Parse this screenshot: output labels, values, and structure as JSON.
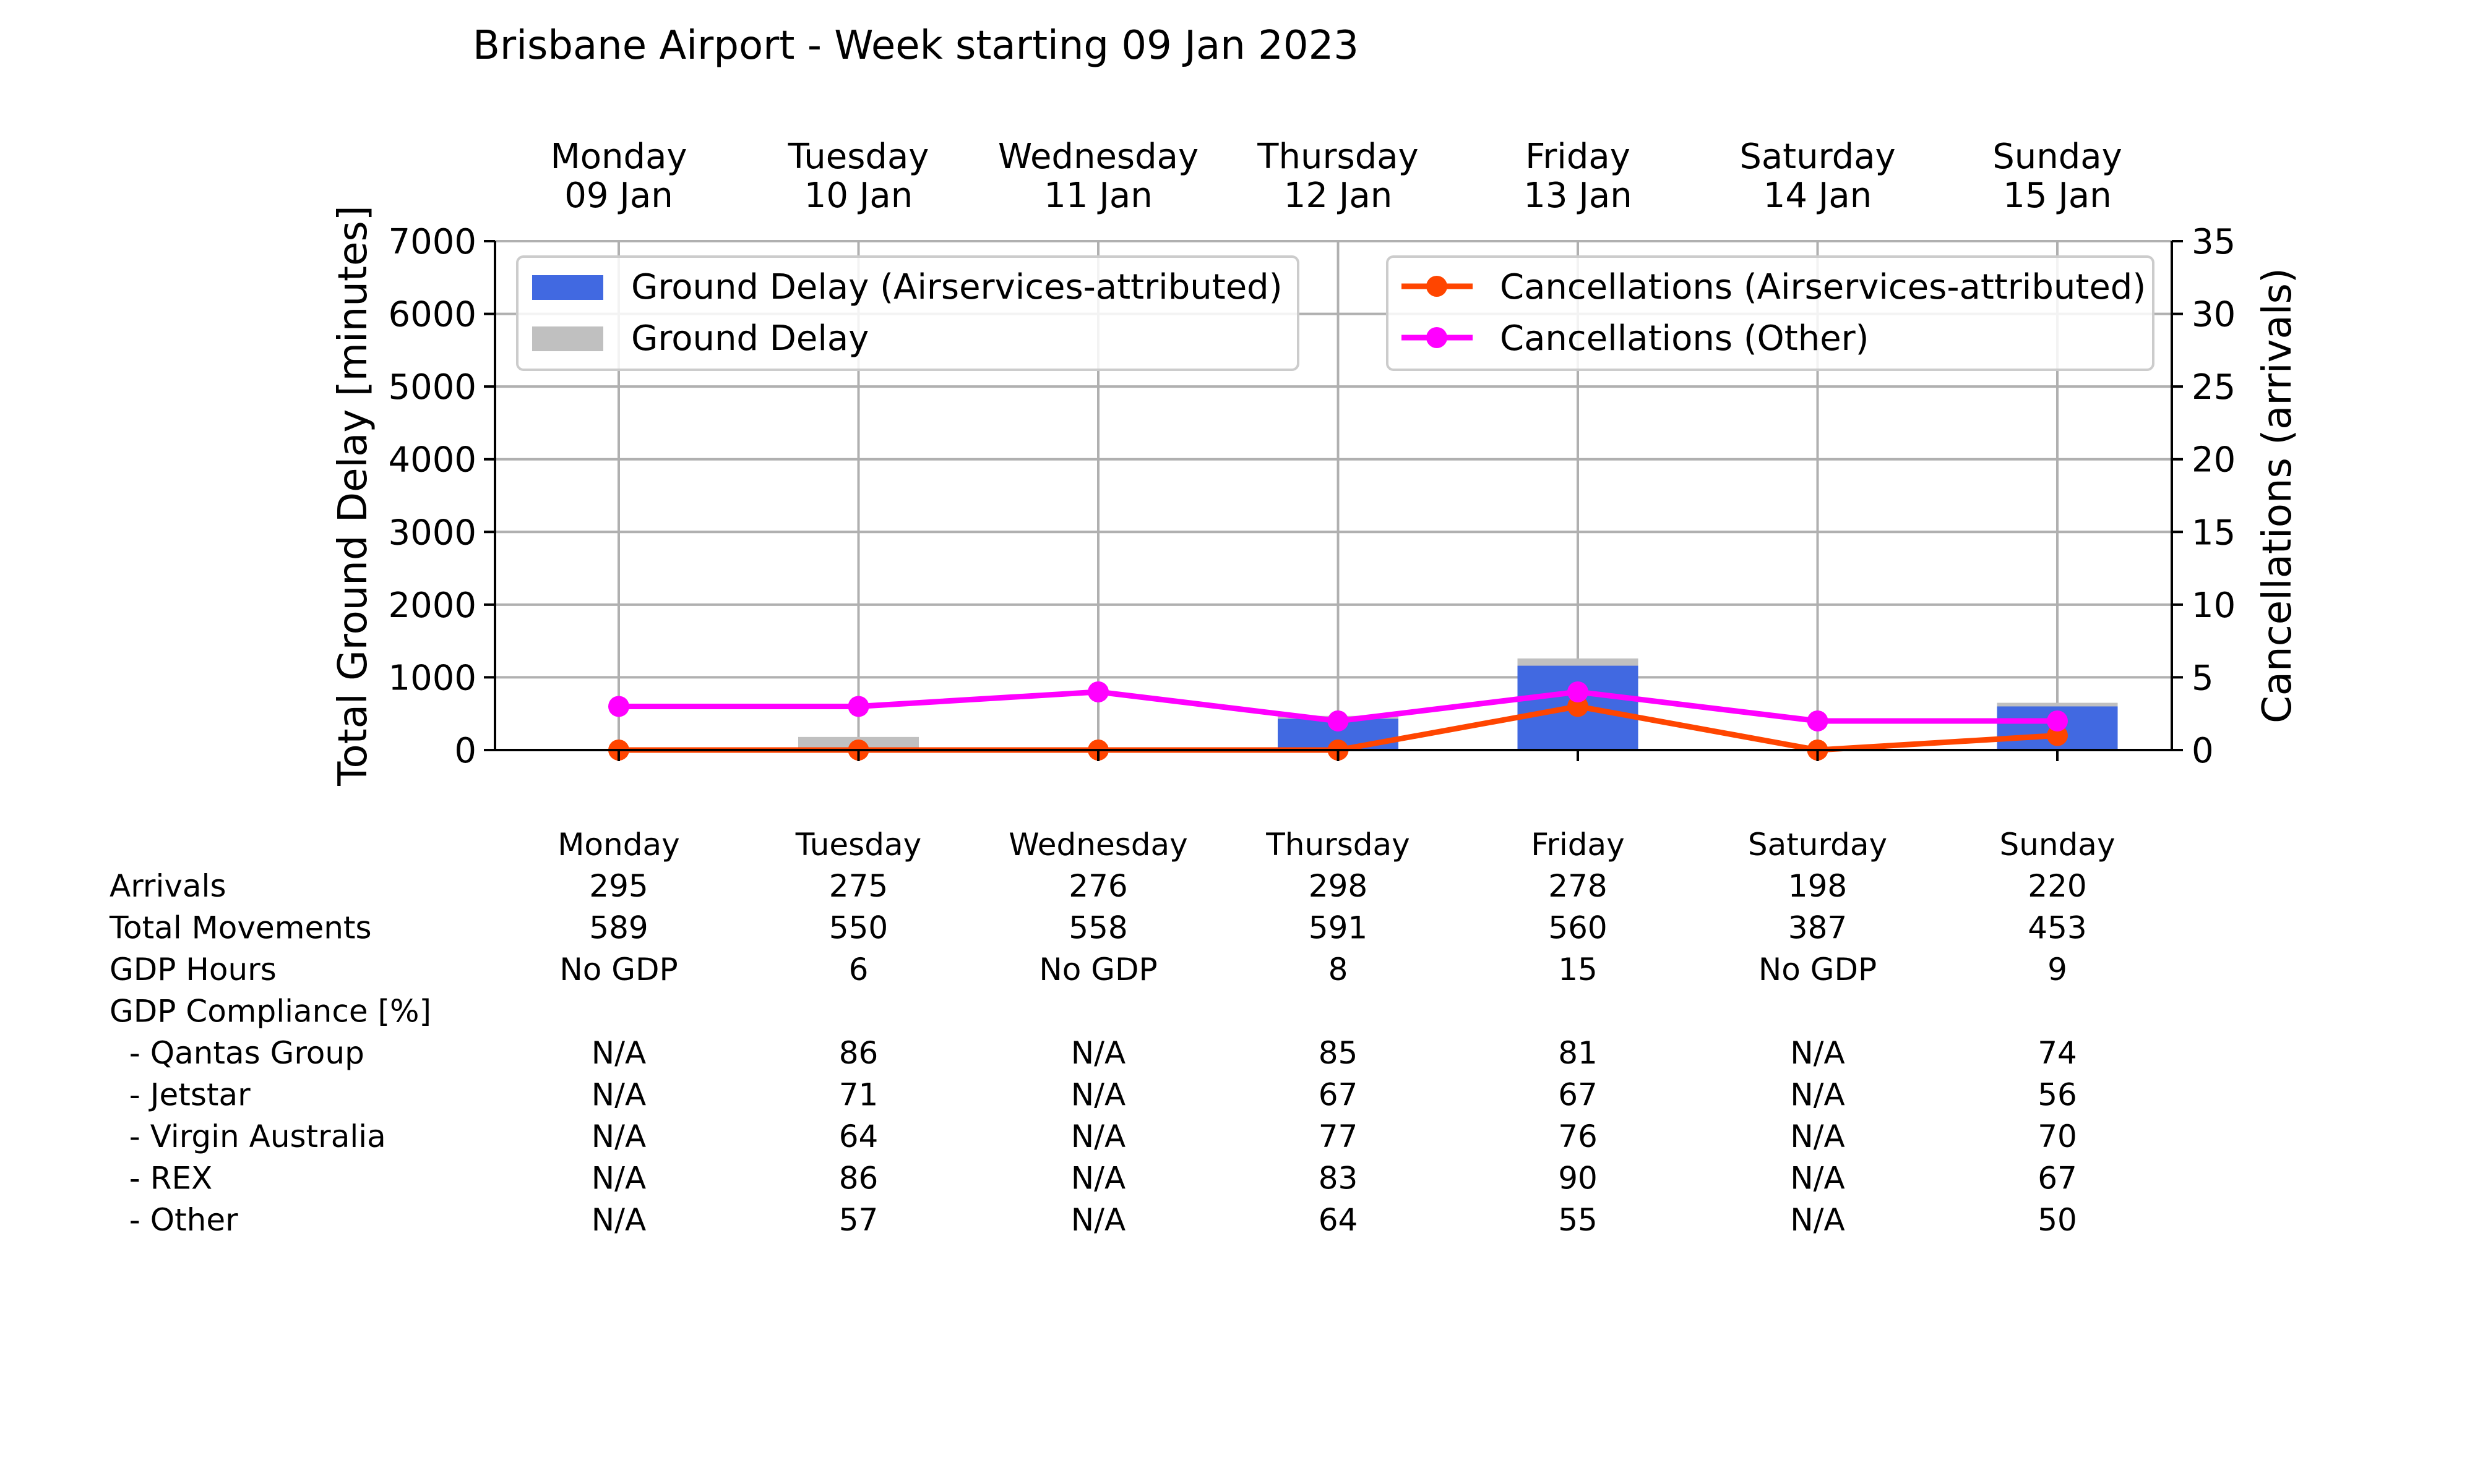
{
  "chart_data": {
    "type": "bar",
    "title": "Brisbane Airport - Week starting 09 Jan 2023",
    "categories": [
      "Monday",
      "Tuesday",
      "Wednesday",
      "Thursday",
      "Friday",
      "Saturday",
      "Sunday"
    ],
    "dates": [
      "09 Jan",
      "10 Jan",
      "11 Jan",
      "12 Jan",
      "13 Jan",
      "14 Jan",
      "15 Jan"
    ],
    "ylabel": "Total Ground Delay [minutes]",
    "y2label": "Cancellations (arrivals)",
    "ylim": [
      0,
      7000
    ],
    "y2lim": [
      0,
      35
    ],
    "yticks": [
      0,
      1000,
      2000,
      3000,
      4000,
      5000,
      6000,
      7000
    ],
    "y2ticks": [
      0,
      5,
      10,
      15,
      20,
      25,
      30,
      35
    ],
    "grid": true,
    "bar_series": [
      {
        "name": "Ground Delay",
        "color": "#c0c0c0",
        "values": [
          0,
          180,
          0,
          470,
          1260,
          0,
          650
        ]
      },
      {
        "name": "Ground Delay (Airservices-attributed)",
        "color": "#4169e1",
        "values": [
          0,
          0,
          0,
          430,
          1160,
          0,
          600
        ]
      }
    ],
    "line_series": [
      {
        "name": "Cancellations (Airservices-attributed)",
        "color": "#ff4500",
        "values": [
          0,
          0,
          0,
          0,
          3,
          0,
          1
        ]
      },
      {
        "name": "Cancellations (Other)",
        "color": "#ff00ff",
        "values": [
          3,
          3,
          4,
          2,
          4,
          2,
          2
        ]
      }
    ],
    "legend_left": [
      "Ground Delay (Airservices-attributed)",
      "Ground Delay"
    ],
    "legend_right": [
      "Cancellations (Airservices-attributed)",
      "Cancellations (Other)"
    ],
    "legend_left_placement": "upper-left",
    "legend_right_placement": "upper-right"
  },
  "table": {
    "header": [
      "Monday",
      "Tuesday",
      "Wednesday",
      "Thursday",
      "Friday",
      "Saturday",
      "Sunday"
    ],
    "rows": [
      {
        "label": "Arrivals",
        "values": [
          "295",
          "275",
          "276",
          "298",
          "278",
          "198",
          "220"
        ]
      },
      {
        "label": "Total Movements",
        "values": [
          "589",
          "550",
          "558",
          "591",
          "560",
          "387",
          "453"
        ]
      },
      {
        "label": "GDP Hours",
        "values": [
          "No GDP",
          "6",
          "No GDP",
          "8",
          "15",
          "No GDP",
          "9"
        ]
      },
      {
        "label": "GDP Compliance [%]",
        "values": [
          "",
          "",
          "",
          "",
          "",
          "",
          ""
        ]
      },
      {
        "label": "  - Qantas Group",
        "values": [
          "N/A",
          "86",
          "N/A",
          "85",
          "81",
          "N/A",
          "74"
        ]
      },
      {
        "label": "  - Jetstar",
        "values": [
          "N/A",
          "71",
          "N/A",
          "67",
          "67",
          "N/A",
          "56"
        ]
      },
      {
        "label": "  - Virgin Australia",
        "values": [
          "N/A",
          "64",
          "N/A",
          "77",
          "76",
          "N/A",
          "70"
        ]
      },
      {
        "label": "  - REX",
        "values": [
          "N/A",
          "86",
          "N/A",
          "83",
          "90",
          "N/A",
          "67"
        ]
      },
      {
        "label": "  - Other",
        "values": [
          "N/A",
          "57",
          "N/A",
          "64",
          "55",
          "N/A",
          "50"
        ]
      }
    ]
  }
}
